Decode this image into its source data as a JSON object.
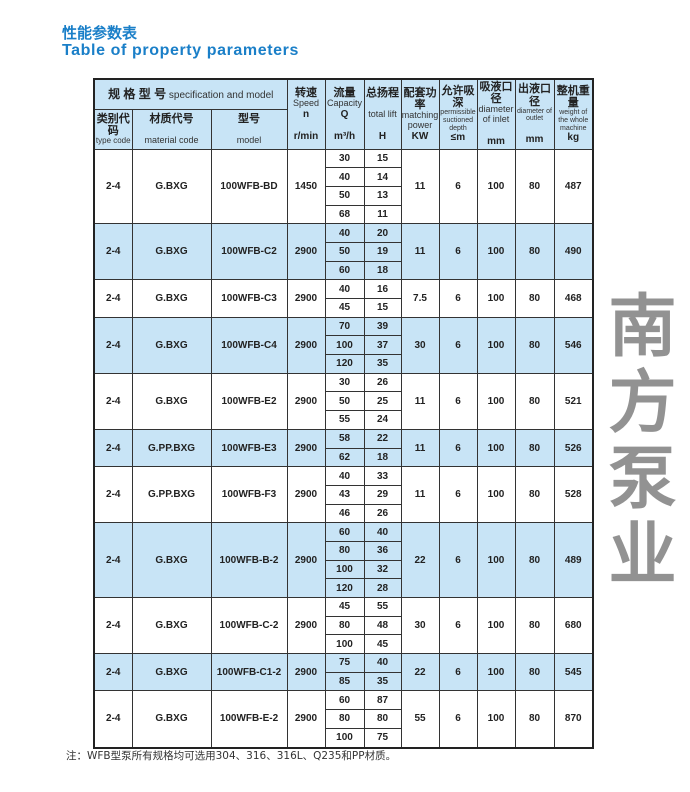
{
  "title_cn": "性能参数表",
  "title_en": "Table of property parameters",
  "header": {
    "spec_cn": "规 格 型 号",
    "spec_en": "specification and model",
    "type_cn": "类别代码",
    "type_en": "type code",
    "material_cn": "材质代号",
    "material_en": "material code",
    "model_cn": "型号",
    "model_en": "model",
    "speed_cn": "转速",
    "speed_en": "Speed",
    "speed_sym": "n",
    "speed_unit": "r/min",
    "cap_cn": "流量",
    "cap_en": "Capacity",
    "cap_sym": "Q",
    "cap_unit": "m³/h",
    "lift_cn": "总扬程",
    "lift_en": "total lift",
    "lift_unit": "H",
    "power_cn": "配套功率",
    "power_en": "matching power",
    "power_unit": "KW",
    "depth_cn": "允许吸深",
    "depth_en": "permissible suctioned depth",
    "depth_unit": "≤m",
    "inlet_cn": "吸液口径",
    "inlet_en": "diameter of inlet",
    "inlet_unit": "mm",
    "outlet_cn": "出液口径",
    "outlet_en": "diameter of outlet",
    "outlet_unit": "mm",
    "weight_cn": "整机重量",
    "weight_en": "weight of the whole machine",
    "weight_unit": "kg"
  },
  "rows": [
    {
      "type": "2-4",
      "material": "G.BXG",
      "model": "100WFB-BD",
      "speed": "1450",
      "q": [
        "30",
        "40",
        "50",
        "68"
      ],
      "h": [
        "15",
        "14",
        "13",
        "11"
      ],
      "power": "11",
      "depth": "6",
      "inlet": "100",
      "outlet": "80",
      "weight": "487"
    },
    {
      "type": "2-4",
      "material": "G.BXG",
      "model": "100WFB-C2",
      "speed": "2900",
      "q": [
        "40",
        "50",
        "60"
      ],
      "h": [
        "20",
        "19",
        "18"
      ],
      "power": "11",
      "depth": "6",
      "inlet": "100",
      "outlet": "80",
      "weight": "490"
    },
    {
      "type": "2-4",
      "material": "G.BXG",
      "model": "100WFB-C3",
      "speed": "2900",
      "q": [
        "40",
        "45"
      ],
      "h": [
        "16",
        "15"
      ],
      "power": "7.5",
      "depth": "6",
      "inlet": "100",
      "outlet": "80",
      "weight": "468"
    },
    {
      "type": "2-4",
      "material": "G.BXG",
      "model": "100WFB-C4",
      "speed": "2900",
      "q": [
        "70",
        "100",
        "120"
      ],
      "h": [
        "39",
        "37",
        "35"
      ],
      "power": "30",
      "depth": "6",
      "inlet": "100",
      "outlet": "80",
      "weight": "546"
    },
    {
      "type": "2-4",
      "material": "G.BXG",
      "model": "100WFB-E2",
      "speed": "2900",
      "q": [
        "30",
        "50",
        "55"
      ],
      "h": [
        "26",
        "25",
        "24"
      ],
      "power": "11",
      "depth": "6",
      "inlet": "100",
      "outlet": "80",
      "weight": "521"
    },
    {
      "type": "2-4",
      "material": "G.PP.BXG",
      "model": "100WFB-E3",
      "speed": "2900",
      "q": [
        "58",
        "62"
      ],
      "h": [
        "22",
        "18"
      ],
      "power": "11",
      "depth": "6",
      "inlet": "100",
      "outlet": "80",
      "weight": "526"
    },
    {
      "type": "2-4",
      "material": "G.PP.BXG",
      "model": "100WFB-F3",
      "speed": "2900",
      "q": [
        "40",
        "43",
        "46"
      ],
      "h": [
        "33",
        "29",
        "26"
      ],
      "power": "11",
      "depth": "6",
      "inlet": "100",
      "outlet": "80",
      "weight": "528"
    },
    {
      "type": "2-4",
      "material": "G.BXG",
      "model": "100WFB-B-2",
      "speed": "2900",
      "q": [
        "60",
        "80",
        "100",
        "120"
      ],
      "h": [
        "40",
        "36",
        "32",
        "28"
      ],
      "power": "22",
      "depth": "6",
      "inlet": "100",
      "outlet": "80",
      "weight": "489"
    },
    {
      "type": "2-4",
      "material": "G.BXG",
      "model": "100WFB-C-2",
      "speed": "2900",
      "q": [
        "45",
        "80",
        "100"
      ],
      "h": [
        "55",
        "48",
        "45"
      ],
      "power": "30",
      "depth": "6",
      "inlet": "100",
      "outlet": "80",
      "weight": "680"
    },
    {
      "type": "2-4",
      "material": "G.BXG",
      "model": "100WFB-C1-2",
      "speed": "2900",
      "q": [
        "75",
        "85"
      ],
      "h": [
        "40",
        "35"
      ],
      "power": "22",
      "depth": "6",
      "inlet": "100",
      "outlet": "80",
      "weight": "545"
    },
    {
      "type": "2-4",
      "material": "G.BXG",
      "model": "100WFB-E-2",
      "speed": "2900",
      "q": [
        "60",
        "80",
        "100"
      ],
      "h": [
        "87",
        "80",
        "75"
      ],
      "power": "55",
      "depth": "6",
      "inlet": "100",
      "outlet": "80",
      "weight": "870"
    }
  ],
  "note": "注：WFB型泵所有规格均可选用304、316、316L、Q235和PP材质。",
  "watermark": [
    "南",
    "方",
    "泵",
    "业"
  ],
  "colors": {
    "title": "#1a7fc8",
    "row_blue": "#c8e4f6"
  }
}
